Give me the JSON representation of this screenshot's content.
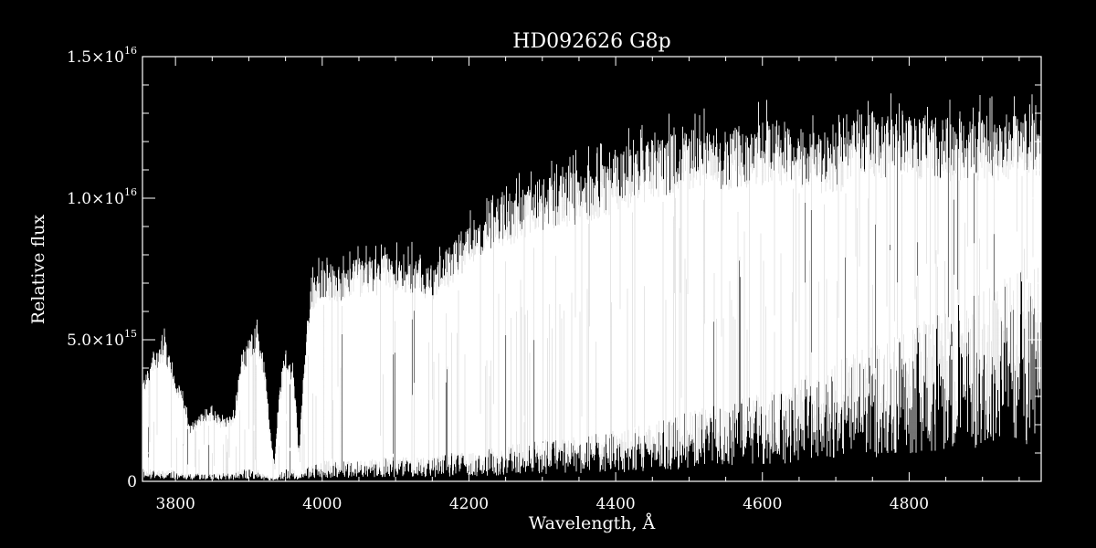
{
  "chart_data": {
    "type": "line",
    "title": "HD092626   G8p",
    "xlabel": "Wavelength, Å",
    "ylabel": "Relative flux",
    "xlim": [
      3755,
      4980
    ],
    "ylim": [
      0,
      1.5e+16
    ],
    "x_ticks": [
      3800,
      4000,
      4200,
      4400,
      4600,
      4800
    ],
    "x_tick_labels": [
      "3800",
      "4000",
      "4200",
      "4400",
      "4600",
      "4800"
    ],
    "y_ticks": [
      0,
      5000000000000000.0,
      1e+16,
      1.5e+16
    ],
    "y_tick_labels": [
      {
        "mant": "0",
        "exp": ""
      },
      {
        "mant": "5.0×10",
        "exp": "15"
      },
      {
        "mant": "1.0×10",
        "exp": "16"
      },
      {
        "mant": "1.5×10",
        "exp": "16"
      }
    ],
    "grid": false,
    "colors": {
      "background": "#000000",
      "foreground": "#ffffff"
    },
    "series": [
      {
        "envelope": {
          "x": [
            3755,
            3770,
            3785,
            3800,
            3810,
            3820,
            3835,
            3850,
            3865,
            3880,
            3890,
            3900,
            3910,
            3920,
            3930,
            3935,
            3940,
            3950,
            3960,
            3968,
            3975,
            3985,
            4000,
            4020,
            4050,
            4080,
            4100,
            4130,
            4150,
            4180,
            4200,
            4230,
            4260,
            4300,
            4340,
            4380,
            4420,
            4460,
            4500,
            4540,
            4580,
            4620,
            4660,
            4700,
            4740,
            4780,
            4820,
            4860,
            4900,
            4940,
            4980
          ],
          "upper": [
            3600000000000000.0,
            4500000000000000.0,
            5200000000000000.0,
            3800000000000000.0,
            3200000000000000.0,
            2000000000000000.0,
            2400000000000000.0,
            2600000000000000.0,
            2200000000000000.0,
            2400000000000000.0,
            4500000000000000.0,
            5200000000000000.0,
            5600000000000000.0,
            4500000000000000.0,
            1500000000000000.0,
            700000000000000.0,
            2800000000000000.0,
            4800000000000000.0,
            4200000000000000.0,
            1000000000000000.0,
            4000000000000000.0,
            7200000000000000.0,
            7800000000000000.0,
            7600000000000000.0,
            7900000000000000.0,
            8000000000000000.0,
            8200000000000000.0,
            8000000000000000.0,
            7600000000000000.0,
            8500000000000000.0,
            9200000000000000.0,
            1e+16,
            1.02e+16,
            1.08e+16,
            1.1e+16,
            1.13e+16,
            1.18e+16,
            1.22e+16,
            1.25e+16,
            1.25e+16,
            1.26e+16,
            1.28e+16,
            1.24e+16,
            1.23e+16,
            1.31e+16,
            1.3e+16,
            1.3e+16,
            1.29e+16,
            1.29e+16,
            1.3e+16,
            1.3e+16
          ],
          "lower": [
            300000000000000.0,
            300000000000000.0,
            250000000000000.0,
            300000000000000.0,
            200000000000000.0,
            200000000000000.0,
            200000000000000.0,
            200000000000000.0,
            200000000000000.0,
            200000000000000.0,
            300000000000000.0,
            300000000000000.0,
            300000000000000.0,
            200000000000000.0,
            100000000000000.0,
            100000000000000.0,
            200000000000000.0,
            300000000000000.0,
            300000000000000.0,
            200000000000000.0,
            300000000000000.0,
            400000000000000.0,
            500000000000000.0,
            500000000000000.0,
            500000000000000.0,
            600000000000000.0,
            600000000000000.0,
            600000000000000.0,
            600000000000000.0,
            700000000000000.0,
            700000000000000.0,
            800000000000000.0,
            900000000000000.0,
            1000000000000000.0,
            1100000000000000.0,
            1200000000000000.0,
            1300000000000000.0,
            1500000000000000.0,
            1700000000000000.0,
            1900000000000000.0,
            2100000000000000.0,
            2300000000000000.0,
            2600000000000000.0,
            2900000000000000.0,
            3300000000000000.0,
            3600000000000000.0,
            3900000000000000.0,
            4300000000000000.0,
            4700000000000000.0,
            5100000000000000.0,
            5400000000000000.0
          ]
        }
      }
    ]
  }
}
